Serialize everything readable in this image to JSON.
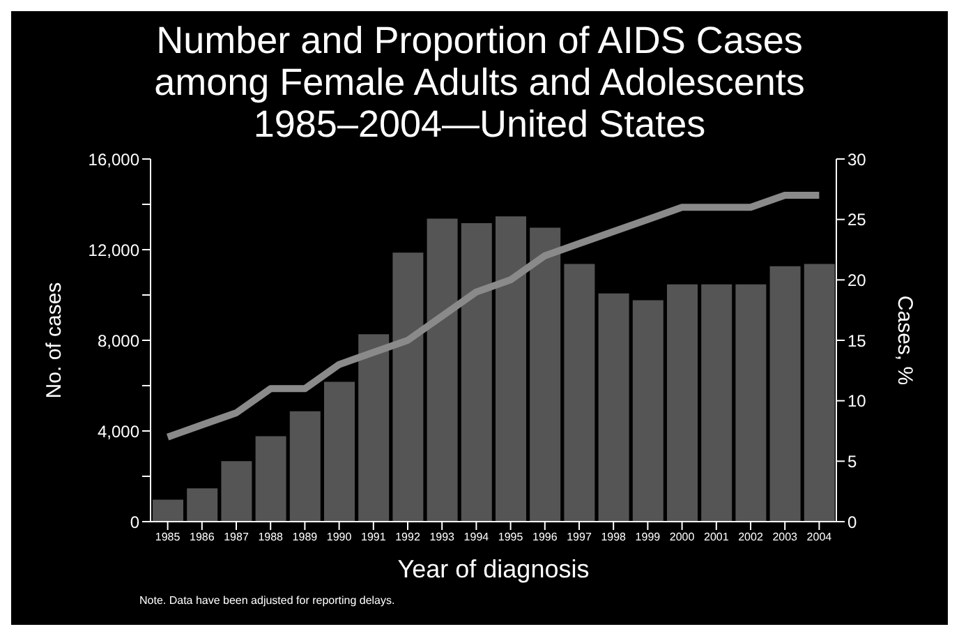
{
  "chart_data": {
    "type": "bar",
    "title": "Number and Proportion of AIDS Cases among Female Adults and Adolescents 1985–2004—United States",
    "xlabel": "Year of diagnosis",
    "ylabel": "No. of cases",
    "y2label": "Cases, %",
    "categories": [
      "1985",
      "1986",
      "1987",
      "1988",
      "1989",
      "1990",
      "1991",
      "1992",
      "1993",
      "1994",
      "1995",
      "1996",
      "1997",
      "1998",
      "1999",
      "2000",
      "2001",
      "2002",
      "2003",
      "2004"
    ],
    "series": [
      {
        "color": "#555555",
        "values": [
          1000,
          1500,
          2700,
          3800,
          4900,
          6200,
          8300,
          11900,
          13400,
          13200,
          13500,
          13000,
          11400,
          10100,
          9800,
          10500,
          10500,
          10500,
          11300,
          11400
        ]
      },
      {
        "type": "line",
        "axis": "y2",
        "color": "#8a8a8a",
        "values": [
          7,
          8,
          9,
          11,
          11,
          13,
          14,
          15,
          17,
          19,
          20,
          22,
          23,
          24,
          25,
          26,
          26,
          26,
          27,
          27
        ]
      }
    ],
    "ylim": [
      0,
      16000
    ],
    "yticks": [
      0,
      {
        "value": 2000,
        "label": null
      },
      {
        "value": 4000,
        "label": "4,000"
      },
      {
        "value": 6000,
        "label": null
      },
      {
        "value": 8000,
        "label": "8,000"
      },
      {
        "value": 10000,
        "label": null
      },
      {
        "value": 12000,
        "label": "12,000"
      },
      {
        "value": 14000,
        "label": null
      },
      {
        "value": 16000,
        "label": "16,000"
      }
    ],
    "y2lim": [
      0,
      30
    ],
    "y2ticks": [
      0,
      5,
      10,
      15,
      20,
      25,
      30
    ],
    "annotations": [
      "Note. Data have been adjusted for reporting delays."
    ],
    "grid": false,
    "legend": false,
    "marker": "none"
  }
}
